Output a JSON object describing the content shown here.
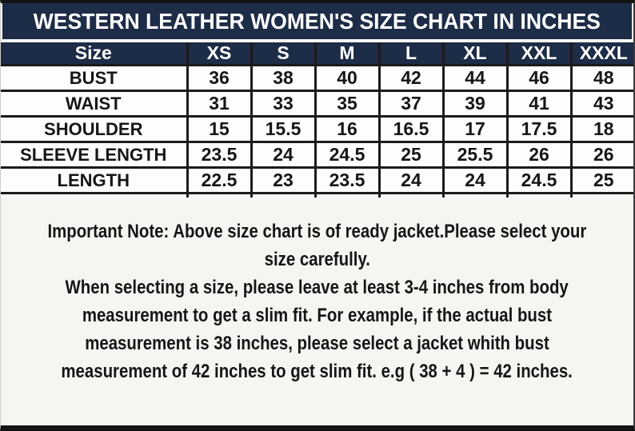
{
  "chart_data": {
    "type": "table",
    "title": "WESTERN LEATHER WOMEN'S SIZE CHART IN INCHES",
    "columns": [
      "Size",
      "XS",
      "S",
      "M",
      "L",
      "XL",
      "XXL",
      "XXXL"
    ],
    "rows": [
      {
        "label": "BUST",
        "values": [
          "36",
          "38",
          "40",
          "42",
          "44",
          "46",
          "48"
        ]
      },
      {
        "label": "WAIST",
        "values": [
          "31",
          "33",
          "35",
          "37",
          "39",
          "41",
          "43"
        ]
      },
      {
        "label": "SHOULDER",
        "values": [
          "15",
          "15.5",
          "16",
          "16.5",
          "17",
          "17.5",
          "18"
        ]
      },
      {
        "label": "SLEEVE LENGTH",
        "values": [
          "23.5",
          "24",
          "24.5",
          "25",
          "25.5",
          "26",
          "26"
        ]
      },
      {
        "label": "LENGTH",
        "values": [
          "22.5",
          "23",
          "23.5",
          "24",
          "24",
          "24.5",
          "25"
        ]
      }
    ],
    "units": "inches"
  },
  "note": {
    "lines": [
      "Important Note: Above size chart is of ready jacket.Please select your",
      "size carefully.",
      "When selecting a size, please leave at least 3-4 inches from body",
      "measurement to get a slim fit. For example, if the actual bust",
      "measurement is 38 inches, please select a jacket whith bust",
      "measurement of 42 inches to get slim fit. e.g ( 38 + 4 ) = 42 inches."
    ]
  },
  "colors": {
    "header_navy": "#1d2c47",
    "border_black": "#1b1b1b",
    "cell_background": "#fdfdfb",
    "page_background": "#f6f5f1",
    "header_text": "#ffffff",
    "body_text": "#161616"
  }
}
